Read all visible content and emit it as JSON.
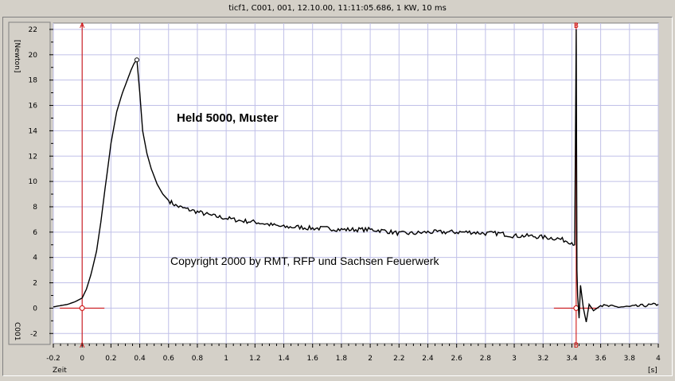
{
  "window": {
    "title": "ticf1,  C001,  001,  12.10.00,  11:11:05.686,  1 KW,  10 ms"
  },
  "colors": {
    "background": "#d4d0c8",
    "plot": "#ffffff",
    "grid": "#c0c0e8",
    "trace": "#000000",
    "cursor": "#cc0000"
  },
  "cursors": {
    "a_label": "A",
    "b_label": "B",
    "a_x": 0,
    "b_x": 3.43
  },
  "annotations": {
    "title": "Held 5000, Muster",
    "copyright": "Copyright 2000 by RMT, RFP und Sachsen Feuerwerk"
  },
  "chart_data": {
    "type": "line",
    "xlabel": "Zeit",
    "xunit": "[s]",
    "ylabel": "[Newton]",
    "channel_label": "C001",
    "xlim": [
      -0.2,
      4.0
    ],
    "ylim": [
      -2.8,
      22.5
    ],
    "grid": true,
    "x_ticks": [
      -0.2,
      0,
      0.2,
      0.4,
      0.6,
      0.8,
      1,
      1.2,
      1.4,
      1.6,
      1.8,
      2,
      2.2,
      2.4,
      2.6,
      2.8,
      3,
      3.2,
      3.4,
      3.6,
      3.8,
      4
    ],
    "x_tick_labels": [
      "-0.2",
      "0",
      "0.2",
      "0.4",
      "0.6",
      "0.8",
      "1",
      "1.2",
      "1.4",
      "1.6",
      "1.8",
      "2",
      "2.2",
      "2.4",
      "2.6",
      "2.8",
      "3",
      "3.2",
      "3.4",
      "3.6",
      "3.8",
      "4"
    ],
    "y_ticks": [
      -2,
      0,
      2,
      4,
      6,
      8,
      10,
      12,
      14,
      16,
      18,
      20,
      22
    ],
    "y_tick_labels": [
      "-2",
      "0",
      "2",
      "4",
      "6",
      "8",
      "10",
      "12",
      "14",
      "16",
      "18",
      "20",
      "22"
    ],
    "series": [
      {
        "x": [
          -0.2,
          -0.1,
          -0.05,
          0,
          0.03,
          0.06,
          0.1,
          0.13,
          0.16,
          0.2,
          0.24,
          0.28,
          0.31,
          0.34,
          0.36,
          0.38,
          0.4,
          0.42,
          0.45,
          0.48,
          0.52,
          0.56,
          0.6,
          0.65,
          0.7,
          0.8,
          0.9,
          1.0,
          1.1,
          1.2,
          1.3,
          1.4,
          1.5,
          1.6,
          1.7,
          1.8,
          1.9,
          2.0,
          2.1,
          2.2,
          2.3,
          2.4,
          2.5,
          2.6,
          2.7,
          2.8,
          2.9,
          3.0,
          3.1,
          3.2,
          3.3,
          3.4,
          3.42,
          3.43,
          3.435,
          3.44,
          3.45,
          3.46,
          3.48,
          3.5,
          3.52,
          3.55,
          3.6,
          3.7,
          3.8,
          3.9,
          4.0
        ],
        "y": [
          0.1,
          0.3,
          0.5,
          0.8,
          1.5,
          2.6,
          4.5,
          6.8,
          9.5,
          13.0,
          15.5,
          17.0,
          17.9,
          18.8,
          19.3,
          19.6,
          17.0,
          14.0,
          12.2,
          11.0,
          9.8,
          9.0,
          8.5,
          8.1,
          7.9,
          7.6,
          7.3,
          7.1,
          6.9,
          6.8,
          6.6,
          6.4,
          6.4,
          6.3,
          6.3,
          6.2,
          6.2,
          6.2,
          6.1,
          5.9,
          5.9,
          6.0,
          6.0,
          6.0,
          6.0,
          5.9,
          5.9,
          5.7,
          5.7,
          5.6,
          5.5,
          5.2,
          5.0,
          22.0,
          3.0,
          1.0,
          -0.8,
          1.8,
          0.0,
          -1.1,
          0.3,
          -0.2,
          0.2,
          0.1,
          0.1,
          0.2,
          0.3
        ]
      }
    ]
  }
}
